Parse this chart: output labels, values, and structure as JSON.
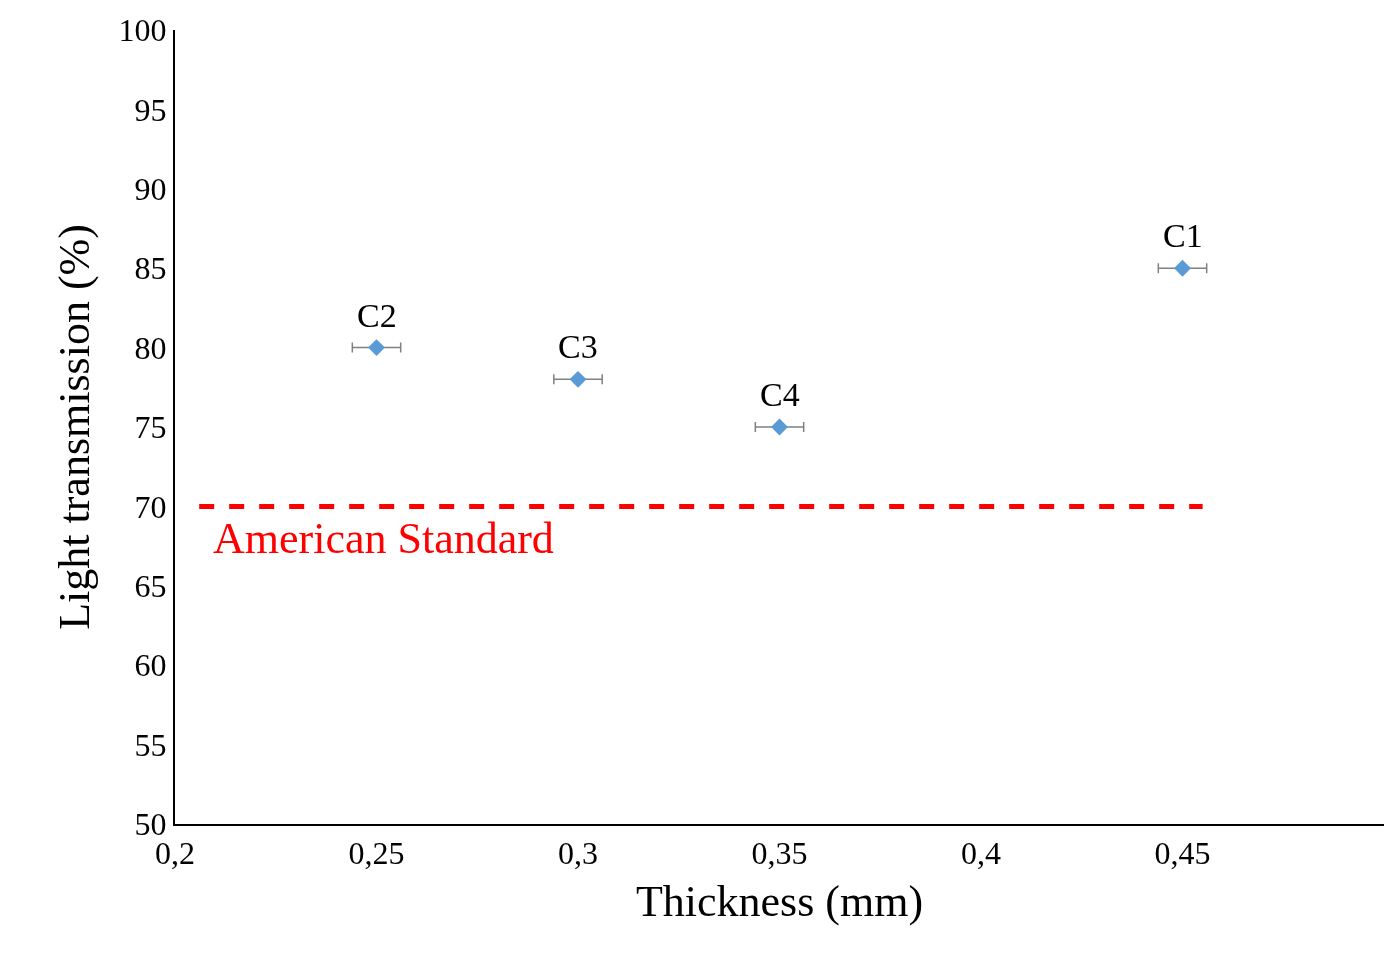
{
  "chart_data": {
    "type": "scatter",
    "xlabel": "Thickness (mm)",
    "ylabel": "Light transmission (%)",
    "x": [
      0.25,
      0.3,
      0.35,
      0.45
    ],
    "series": [
      {
        "color": "#5b9bd5",
        "values": [
          80,
          78,
          75,
          85
        ],
        "xerrors": [
          0.006,
          0.006,
          0.006,
          0.006
        ]
      }
    ],
    "marker": "diamond",
    "legend": false,
    "xlim": [
      0.2,
      0.5
    ],
    "xticks": [
      {
        "value": 0.2,
        "label": "0,2"
      },
      {
        "value": 0.25,
        "label": "0,25"
      },
      {
        "value": 0.3,
        "label": "0,3"
      },
      {
        "value": 0.35,
        "label": "0,35"
      },
      {
        "value": 0.4,
        "label": "0,4"
      },
      {
        "value": 0.45,
        "label": "0,45"
      }
    ],
    "ylim": [
      50,
      100
    ],
    "yticks": [
      50,
      55,
      60,
      65,
      70,
      75,
      80,
      85,
      90,
      95,
      100
    ],
    "ref_lines": [
      {
        "axis": "y",
        "value": 70,
        "label": "American Standard",
        "color": "#ff0000",
        "line_style": "dashed"
      }
    ],
    "annotations": [
      {
        "text": "C2",
        "x": 0.25,
        "y": 80
      },
      {
        "text": "C3",
        "x": 0.3,
        "y": 78
      },
      {
        "text": "C4",
        "x": 0.35,
        "y": 75
      },
      {
        "text": "C1",
        "x": 0.45,
        "y": 85
      }
    ]
  }
}
